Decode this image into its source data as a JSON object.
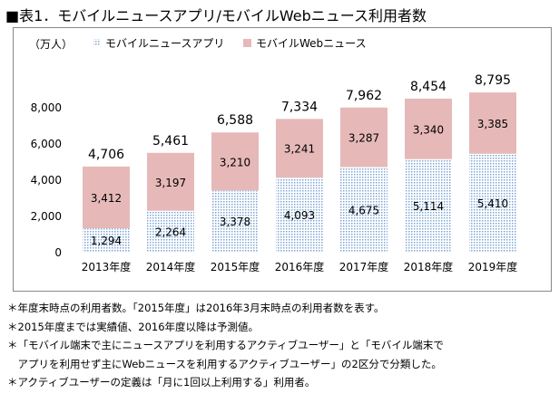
{
  "title": "■表1．モバイルニュースアプリ/モバイルWebニュース利用者数",
  "chart_data": {
    "type": "bar",
    "stacked": true,
    "unit_label": "（万人）",
    "categories": [
      "2013年度",
      "2014年度",
      "2015年度",
      "2016年度",
      "2017年度",
      "2018年度",
      "2019年度"
    ],
    "series": [
      {
        "name": "モバイルニュースアプリ",
        "values": [
          1294,
          2264,
          3378,
          4093,
          4675,
          5114,
          5410
        ],
        "color": "#bdd7ee",
        "pattern": "dotted"
      },
      {
        "name": "モバイルWebニュース",
        "values": [
          3412,
          3197,
          3210,
          3241,
          3287,
          3340,
          3385
        ],
        "color": "#e6b9b8"
      }
    ],
    "totals": [
      4706,
      5461,
      6588,
      7334,
      7962,
      8454,
      8795
    ],
    "total_labels": [
      "4,706",
      "5,461",
      "6,588",
      "7,334",
      "7,962",
      "8,454",
      "8,795"
    ],
    "ylim": [
      0,
      9000
    ],
    "yticks": [
      0,
      2000,
      4000,
      6000,
      8000
    ],
    "ytick_labels": [
      "0",
      "2,000",
      "4,000",
      "6,000",
      "8,000"
    ],
    "legend_position": "top",
    "grid": false
  },
  "notes": [
    "＊年度末時点の利用者数。「2015年度」は2016年3月末時点の利用者数を表す。",
    "＊2015年度までは実績値、2016年度以降は予測値。",
    "＊「モバイル端末で主にニュースアプリを利用するアクティブユーザー」と「モバイル端末で",
    "　アプリを利用せず主にWebニュースを利用するアクティブユーザー」の2区分で分類した。",
    "＊アクティブユーザーの定義は「月に1回以上利用する」利用者。"
  ]
}
